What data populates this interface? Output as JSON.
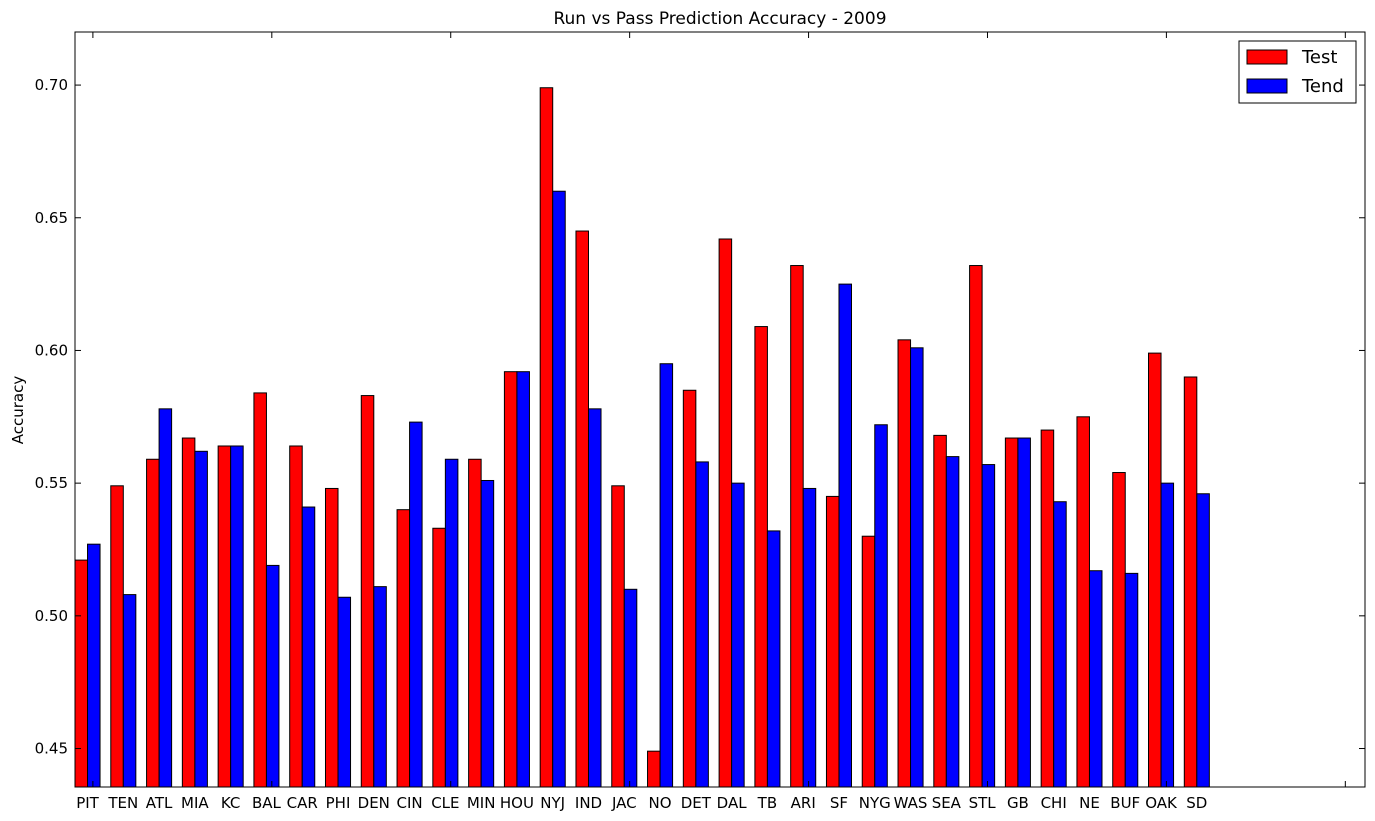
{
  "chart_data": {
    "type": "bar",
    "title": "Run vs Pass Prediction Accuracy - 2009",
    "xlabel": "",
    "ylabel": "Accuracy",
    "ylim": [
      0.4355,
      0.72
    ],
    "yticks": [
      "0.45",
      "0.50",
      "0.55",
      "0.60",
      "0.65",
      "0.70"
    ],
    "grid": false,
    "legend_position": "top-right",
    "categories": [
      "PIT",
      "TEN",
      "ATL",
      "MIA",
      "KC",
      "BAL",
      "CAR",
      "PHI",
      "DEN",
      "CIN",
      "CLE",
      "MIN",
      "HOU",
      "NYJ",
      "IND",
      "JAC",
      "NO",
      "DET",
      "DAL",
      "TB",
      "ARI",
      "SF",
      "NYG",
      "WAS",
      "SEA",
      "STL",
      "GB",
      "CHI",
      "NE",
      "BUF",
      "OAK",
      "SD"
    ],
    "series": [
      {
        "name": "Test",
        "color": "#ff0000",
        "values": [
          0.521,
          0.549,
          0.559,
          0.567,
          0.564,
          0.584,
          0.564,
          0.548,
          0.583,
          0.54,
          0.533,
          0.559,
          0.592,
          0.699,
          0.645,
          0.549,
          0.449,
          0.585,
          0.642,
          0.609,
          0.632,
          0.545,
          0.53,
          0.604,
          0.568,
          0.632,
          0.567,
          0.57,
          0.575,
          0.554,
          0.599,
          0.59
        ]
      },
      {
        "name": "Tend",
        "color": "#0000ff",
        "values": [
          0.527,
          0.508,
          0.578,
          0.562,
          0.564,
          0.519,
          0.541,
          0.507,
          0.511,
          0.573,
          0.559,
          0.551,
          0.592,
          0.66,
          0.578,
          0.51,
          0.595,
          0.558,
          0.55,
          0.532,
          0.548,
          0.625,
          0.572,
          0.601,
          0.56,
          0.557,
          0.567,
          0.543,
          0.517,
          0.516,
          0.55,
          0.546
        ]
      }
    ]
  }
}
